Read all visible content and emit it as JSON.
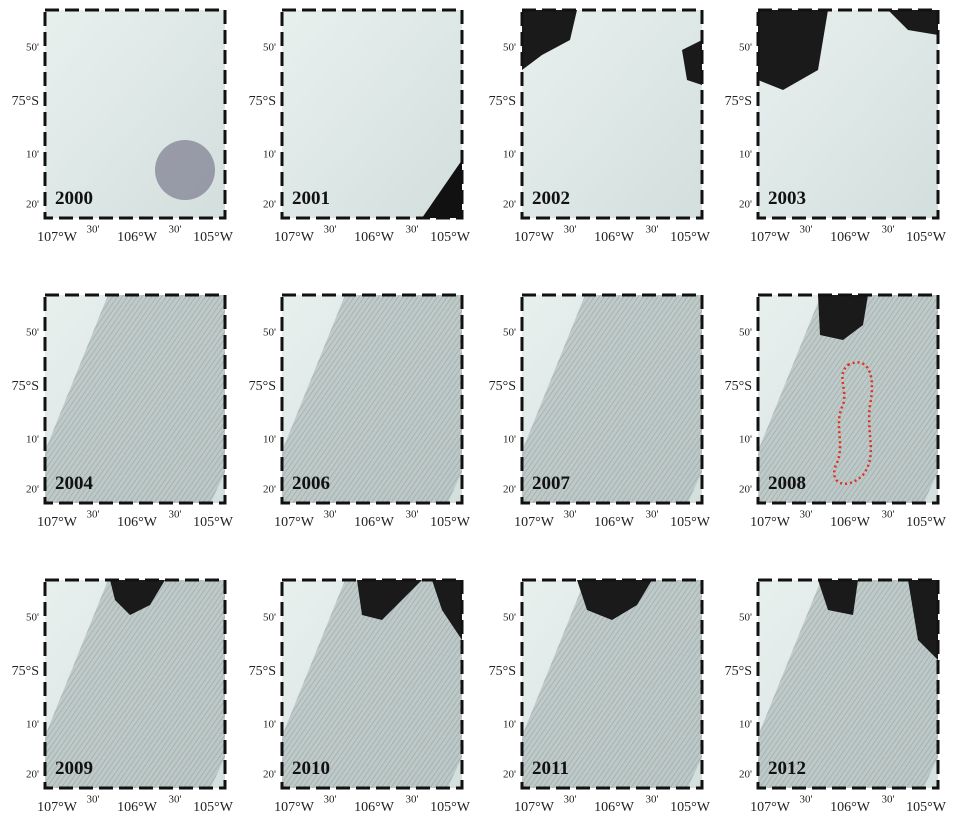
{
  "panels": [
    {
      "year": "2000"
    },
    {
      "year": "2001"
    },
    {
      "year": "2002"
    },
    {
      "year": "2003"
    },
    {
      "year": "2004"
    },
    {
      "year": "2006"
    },
    {
      "year": "2007"
    },
    {
      "year": "2008"
    },
    {
      "year": "2009"
    },
    {
      "year": "2010"
    },
    {
      "year": "2011"
    },
    {
      "year": "2012"
    }
  ],
  "y_labels": [
    "50'",
    "75°S",
    "10'",
    "20'"
  ],
  "x_labels": [
    "107°W",
    "30'",
    "106°W",
    "30'",
    "105°W"
  ]
}
